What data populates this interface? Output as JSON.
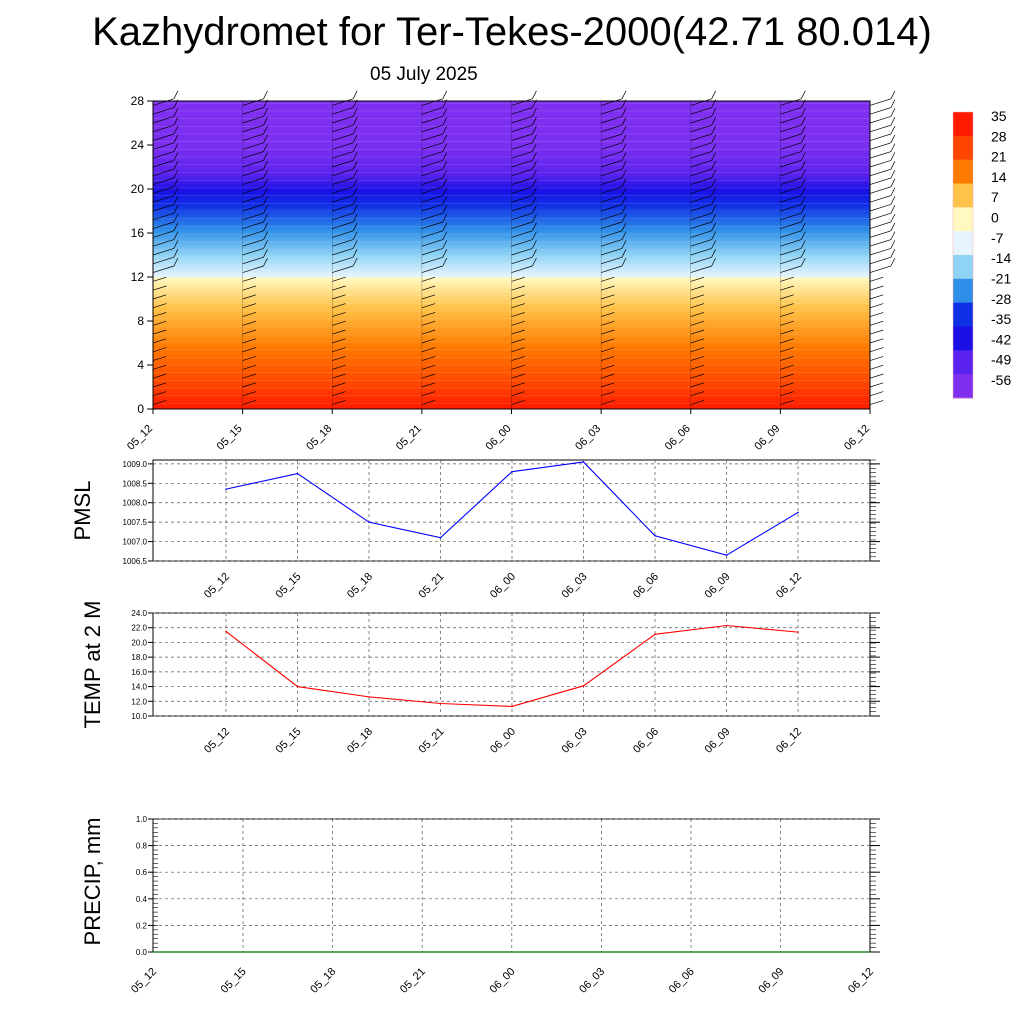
{
  "title": "Kazhydromet for Ter-Tekes-2000(42.71 80.014)",
  "subtitle": "05 July 2025",
  "colors": {
    "pressure_line": "#0000ff",
    "temperature_line": "#ff0000",
    "precip_line": "#007000",
    "grid": "#555555",
    "barb": "#000000"
  },
  "chart_data": [
    {
      "type": "heatmap",
      "description_ref": "time-height cross section of temperature with wind barbs",
      "x": [
        "05_12",
        "05_15",
        "05_18",
        "05_21",
        "06_00",
        "06_03",
        "06_06",
        "06_09",
        "06_12"
      ],
      "y_ticks": [
        0,
        4,
        8,
        12,
        16,
        20,
        24,
        28
      ],
      "ylim": [
        0,
        28
      ],
      "colorbar": {
        "labels": [
          "35",
          "28",
          "21",
          "14",
          "7",
          "0",
          "-7",
          "-14",
          "-21",
          "-28",
          "-35",
          "-42",
          "-49",
          "-56"
        ],
        "range": [
          -60,
          38
        ]
      },
      "layers": [
        {
          "height": 0,
          "temp": 30
        },
        {
          "height": 4,
          "temp": 17
        },
        {
          "height": 8,
          "temp": 8
        },
        {
          "height": 12,
          "temp": -14
        },
        {
          "height": 16,
          "temp": -35
        },
        {
          "height": 20,
          "temp": -55
        },
        {
          "height": 24,
          "temp": -60
        },
        {
          "height": 28,
          "temp": -60
        }
      ]
    },
    {
      "type": "line",
      "ylabel": "PMSL",
      "x": [
        "05_12",
        "05_15",
        "05_18",
        "05_21",
        "06_00",
        "06_03",
        "06_06",
        "06_09",
        "06_12"
      ],
      "values": [
        1008.35,
        1008.75,
        1007.5,
        1007.1,
        1008.8,
        1009.05,
        1007.15,
        1006.65,
        1007.75
      ],
      "ylim": [
        1006.5,
        1009.1
      ],
      "y_ticks": [
        "1006.5",
        "1007.0",
        "1007.5",
        "1008.0",
        "1008.5",
        "1009.0"
      ],
      "y_tick_values": [
        1006.5,
        1007.0,
        1007.5,
        1008.0,
        1008.5,
        1009.0
      ],
      "grid": true
    },
    {
      "type": "line",
      "ylabel": "TEMP at 2 M",
      "x": [
        "05_12",
        "05_15",
        "05_18",
        "05_21",
        "06_00",
        "06_03",
        "06_06",
        "06_09",
        "06_12"
      ],
      "values": [
        21.5,
        14.0,
        12.6,
        11.7,
        11.3,
        14.1,
        21.1,
        22.3,
        21.4
      ],
      "ylim": [
        10.0,
        24.0
      ],
      "y_ticks": [
        "10.0",
        "12.0",
        "14.0",
        "16.0",
        "18.0",
        "20.0",
        "22.0",
        "24.0"
      ],
      "y_tick_values": [
        10,
        12,
        14,
        16,
        18,
        20,
        22,
        24
      ],
      "grid": true
    },
    {
      "type": "line",
      "ylabel": "PRECIP, mm",
      "x": [
        "05_12",
        "05_15",
        "05_18",
        "05_21",
        "06_00",
        "06_03",
        "06_06",
        "06_09",
        "06_12"
      ],
      "values": [
        0,
        0,
        0,
        0,
        0,
        0,
        0,
        0,
        0
      ],
      "ylim": [
        0,
        1.0
      ],
      "y_ticks": [
        "0.0",
        "0.2",
        "0.4",
        "0.6",
        "0.8",
        "1.0"
      ],
      "y_tick_values": [
        0,
        0.2,
        0.4,
        0.6,
        0.8,
        1.0
      ],
      "grid": true
    }
  ]
}
